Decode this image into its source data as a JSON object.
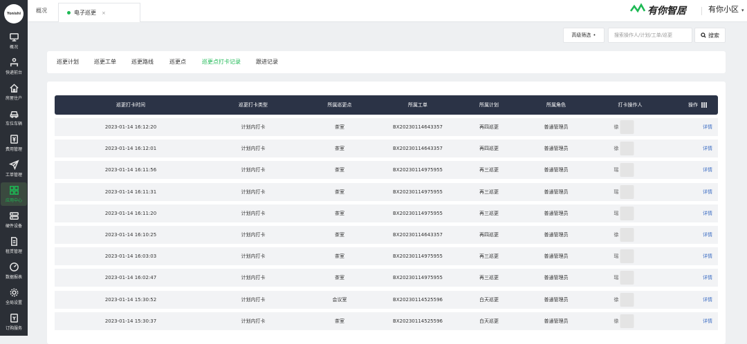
{
  "app": {
    "logo_text": "Yonishi"
  },
  "sidebar": {
    "items": [
      {
        "label": "概况",
        "icon": "monitor-icon"
      },
      {
        "label": "快递前台",
        "icon": "person-desk-icon"
      },
      {
        "label": "房屋住户",
        "icon": "house-icon"
      },
      {
        "label": "车位车辆",
        "icon": "car-icon"
      },
      {
        "label": "费用管理",
        "icon": "yen-icon"
      },
      {
        "label": "工单管理",
        "icon": "send-icon"
      },
      {
        "label": "应用中心",
        "icon": "grid-icon"
      },
      {
        "label": "硬件设备",
        "icon": "server-icon"
      },
      {
        "label": "租赁管理",
        "icon": "document-icon"
      },
      {
        "label": "数据报表",
        "icon": "gauge-icon"
      },
      {
        "label": "全局设置",
        "icon": "gear-icon"
      },
      {
        "label": "订购服务",
        "icon": "order-icon"
      }
    ],
    "active_index": 6
  },
  "topbar": {
    "tabs": [
      {
        "label": "概况"
      },
      {
        "label": "电子巡更"
      }
    ],
    "close_glyph": "×",
    "brand_name": "有你智居",
    "community": "有你小区",
    "community_caret": "▾"
  },
  "filters": {
    "advanced_label": "高级筛选",
    "search_placeholder": "搜索操作人/计划/工单/巡更",
    "search_label": "搜索"
  },
  "subtabs": [
    {
      "label": "巡更计划"
    },
    {
      "label": "巡更工单"
    },
    {
      "label": "巡更路线"
    },
    {
      "label": "巡更点"
    },
    {
      "label": "巡更点打卡记录"
    },
    {
      "label": "跟进记录"
    }
  ],
  "subtabs_active_index": 4,
  "table": {
    "headers": [
      "巡更打卡时间",
      "巡更打卡类型",
      "所属巡更点",
      "所属工单",
      "所属计划",
      "所属角色",
      "打卡操作人",
      "操作"
    ],
    "rows": [
      {
        "time": "2023-01-14 16:12:20",
        "type": "计划内打卡",
        "point": "茶室",
        "order": "BX20230114643357",
        "plan": "再四巡更",
        "role": "普通管理员",
        "operator": "徐\u0007",
        "action": "详情"
      },
      {
        "time": "2023-01-14 16:12:01",
        "type": "计划内打卡",
        "point": "茶室",
        "order": "BX20230114643357",
        "plan": "再四巡更",
        "role": "普通管理员",
        "operator": "徐",
        "action": "详情"
      },
      {
        "time": "2023-01-14 16:11:56",
        "type": "计划内打卡",
        "point": "茶室",
        "order": "BX20230114975955",
        "plan": "再三巡更",
        "role": "普通管理员",
        "operator": "瑶",
        "action": "详情"
      },
      {
        "time": "2023-01-14 16:11:31",
        "type": "计划内打卡",
        "point": "茶室",
        "order": "BX20230114975955",
        "plan": "再三巡更",
        "role": "普通管理员",
        "operator": "瑶",
        "action": "详情"
      },
      {
        "time": "2023-01-14 16:11:20",
        "type": "计划内打卡",
        "point": "茶室",
        "order": "BX20230114975955",
        "plan": "再三巡更",
        "role": "普通管理员",
        "operator": "瑶",
        "action": "详情"
      },
      {
        "time": "2023-01-14 16:10:25",
        "type": "计划内打卡",
        "point": "茶室",
        "order": "BX20230114643357",
        "plan": "再四巡更",
        "role": "普通管理员",
        "operator": "徐",
        "action": "详情"
      },
      {
        "time": "2023-01-14 16:03:03",
        "type": "计划内打卡",
        "point": "茶室",
        "order": "BX20230114975955",
        "plan": "再三巡更",
        "role": "普通管理员",
        "operator": "瑶",
        "action": "详情"
      },
      {
        "time": "2023-01-14 16:02:47",
        "type": "计划内打卡",
        "point": "茶室",
        "order": "BX20230114975955",
        "plan": "再三巡更",
        "role": "普通管理员",
        "operator": "瑶",
        "action": "详情"
      },
      {
        "time": "2023-01-14 15:30:52",
        "type": "计划内打卡",
        "point": "会议室",
        "order": "BX20230114525596",
        "plan": "白天巡更",
        "role": "普通管理员",
        "operator": "徐",
        "action": "详情"
      },
      {
        "time": "2023-01-14 15:30:37",
        "type": "计划内打卡",
        "point": "茶室",
        "order": "BX20230114525596",
        "plan": "白天巡更",
        "role": "普通管理员",
        "operator": "徐",
        "action": "详情"
      }
    ]
  },
  "colors": {
    "accent": "#1db954",
    "sidebar": "#2b2f36",
    "header": "#2b3346",
    "link": "#3f6fc4"
  }
}
